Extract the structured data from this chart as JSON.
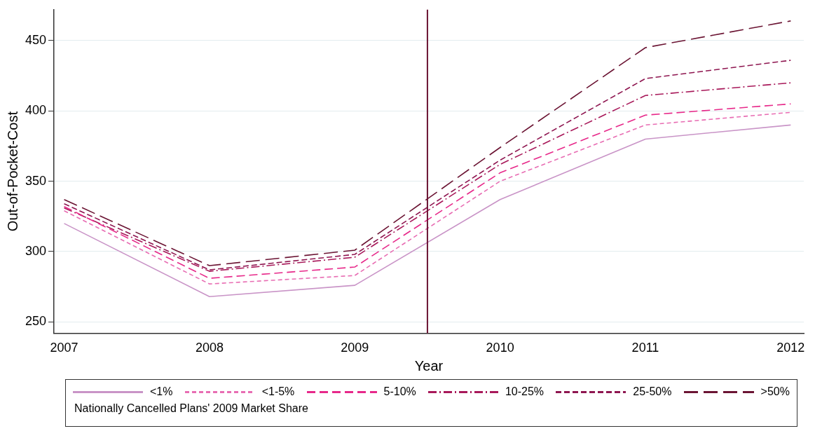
{
  "chart_data": {
    "type": "line",
    "xlabel": "Year",
    "ylabel": "Out-of-Pocket-Cost",
    "legend_title": "Nationally Cancelled Plans' 2009 Market Share",
    "x": [
      2007,
      2008,
      2009,
      2010,
      2011,
      2012
    ],
    "series": [
      {
        "name": "<1%",
        "color": "#c994c7",
        "line_style": "solid",
        "values": [
          320,
          268,
          276,
          337,
          380,
          390
        ]
      },
      {
        "name": "<1-5%",
        "color": "#e86db3",
        "line_style": "dashed",
        "values": [
          329,
          277,
          283,
          350,
          390,
          399
        ]
      },
      {
        "name": "5-10%",
        "color": "#e7298a",
        "line_style": "dashed",
        "values": [
          332,
          281,
          289,
          356,
          397,
          405
        ]
      },
      {
        "name": "10-25%",
        "color": "#a8195a",
        "line_style": "dashed",
        "values": [
          331,
          286,
          296,
          362,
          411,
          420
        ]
      },
      {
        "name": "25-50%",
        "color": "#8e1650",
        "line_style": "dashed",
        "values": [
          334,
          287,
          298,
          365,
          423,
          436
        ]
      },
      {
        "name": ">50%",
        "color": "#6b1433",
        "line_style": "dashed",
        "values": [
          337,
          290,
          301,
          374,
          445,
          464
        ]
      }
    ],
    "xlim": [
      2006.93,
      2012.09
    ],
    "xticks": [
      2007,
      2008,
      2009,
      2010,
      2011,
      2012
    ],
    "ylim": [
      242,
      472
    ],
    "yticks": [
      250,
      300,
      350,
      400,
      450
    ],
    "ref_lines": [
      {
        "axis": "x",
        "value": 2009.5,
        "color": "#6b1433"
      }
    ],
    "grid": "y",
    "legend": "bottom",
    "marker": "none"
  }
}
